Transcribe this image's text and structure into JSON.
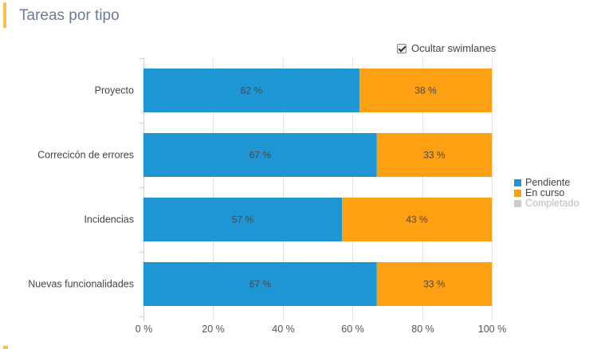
{
  "header": {
    "title": "Tareas por tipo"
  },
  "toggle": {
    "label": "Ocultar swimlanes",
    "checked": true
  },
  "legend": [
    {
      "label": "Pendiente",
      "color": "#1e96d4",
      "text_color": "#444444"
    },
    {
      "label": "En curso",
      "color": "#fda011",
      "text_color": "#444444"
    },
    {
      "label": "Completado",
      "color": "#cccccc",
      "text_color": "#bbbbbb"
    }
  ],
  "colors": {
    "accent": "#f7c04a",
    "title": "#6b7a99"
  },
  "chart_data": {
    "type": "bar",
    "orientation": "horizontal",
    "stacked": "percent",
    "title": "Tareas por tipo",
    "categories": [
      "Proyecto",
      "Correcicón de errores",
      "Incidencias",
      "Nuevas funcionalidades"
    ],
    "series": [
      {
        "name": "Pendiente",
        "values": [
          62,
          67,
          57,
          67
        ],
        "labels": [
          "62 %",
          "67 %",
          "57 %",
          "67 %"
        ]
      },
      {
        "name": "En curso",
        "values": [
          38,
          33,
          43,
          33
        ],
        "labels": [
          "38 %",
          "33 %",
          "43 %",
          "33 %"
        ]
      },
      {
        "name": "Completado",
        "values": [
          0,
          0,
          0,
          0
        ],
        "labels": [
          "",
          "",
          "",
          ""
        ]
      }
    ],
    "xlim": [
      0,
      100
    ],
    "xticks": [
      "0 %",
      "20 %",
      "40 %",
      "60 %",
      "80 %",
      "100 %"
    ],
    "grid": true,
    "legend_position": "right"
  }
}
